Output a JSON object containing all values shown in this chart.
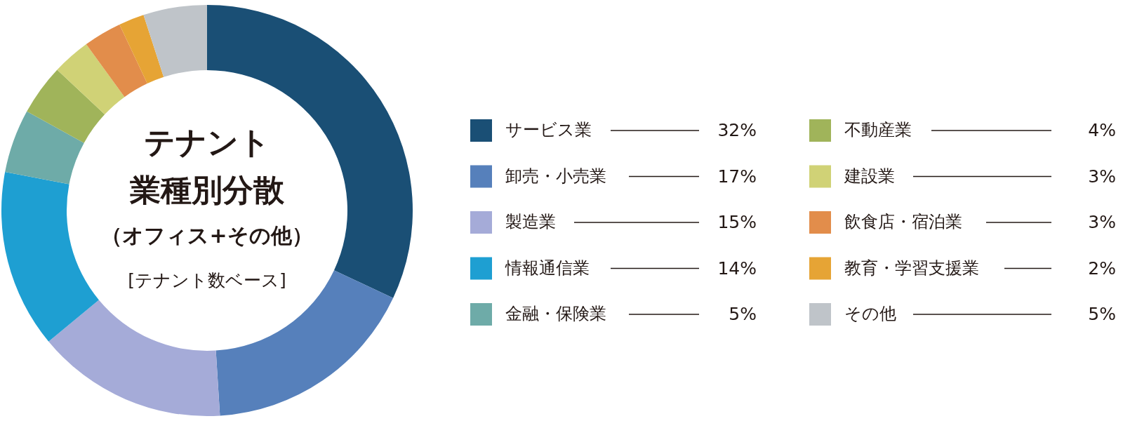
{
  "chart_data": {
    "type": "donut",
    "title": "テナント業種別分散（オフィス+その他）",
    "subtitle": "[テナント数ベース]",
    "categories": [
      "サービス業",
      "卸売・小売業",
      "製造業",
      "情報通信業",
      "金融・保険業",
      "不動産業",
      "建設業",
      "飲食店・宿泊業",
      "教育・学習支援業",
      "その他"
    ],
    "values": [
      32,
      17,
      15,
      14,
      5,
      4,
      3,
      3,
      2,
      5
    ],
    "value_labels": [
      "32%",
      "17%",
      "15%",
      "14%",
      "5%",
      "4%",
      "3%",
      "3%",
      "2%",
      "5%"
    ],
    "colors": [
      "#1a4f75",
      "#5680bb",
      "#a5abd8",
      "#1e9fd2",
      "#6eaba8",
      "#a0b45a",
      "#d0d276",
      "#e28d4b",
      "#e6a435",
      "#bfc4c9"
    ],
    "legend": "right"
  }
}
